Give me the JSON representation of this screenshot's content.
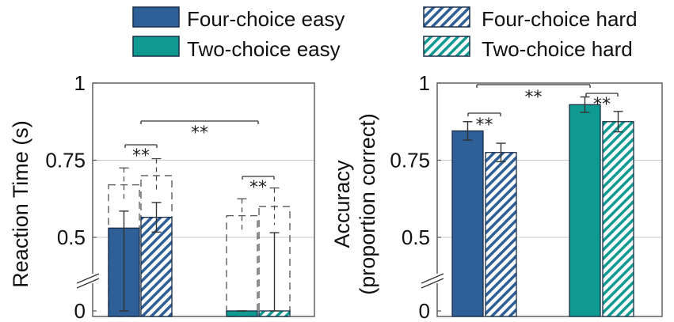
{
  "legend": {
    "items": [
      {
        "label": "Four-choice easy",
        "color": "#2e5f96",
        "pattern": "solid"
      },
      {
        "label": "Four-choice hard",
        "color": "#2e5f96",
        "pattern": "hatch"
      },
      {
        "label": "Two-choice easy",
        "color": "#0f9a91",
        "pattern": "solid"
      },
      {
        "label": "Two-choice hard",
        "color": "#0f9a91",
        "pattern": "hatch"
      }
    ]
  },
  "chart_data": [
    {
      "type": "bar",
      "ylabel": "Reaction Time (s)",
      "y_ticks": [
        "1",
        "0.75",
        "0.5",
        "0"
      ],
      "axis_break": true,
      "grid": true,
      "significance_label": "**",
      "groups": [
        {
          "name": "Four-choice",
          "bars": [
            {
              "condition": "Four-choice easy",
              "value": 0.53,
              "error": 0.055,
              "dashed_value": 0.67,
              "dashed_error": 0.055
            },
            {
              "condition": "Four-choice hard",
              "value": 0.565,
              "error": 0.048,
              "dashed_value": 0.7,
              "dashed_error": 0.055
            }
          ]
        },
        {
          "name": "Two-choice",
          "bars": [
            {
              "condition": "Two-choice easy",
              "value": 0.435,
              "error": 0.048,
              "dashed_value": 0.57,
              "dashed_error": 0.055
            },
            {
              "condition": "Two-choice hard",
              "value": 0.46,
              "error": 0.055,
              "dashed_value": 0.6,
              "dashed_error": 0.06
            }
          ]
        }
      ]
    },
    {
      "type": "bar",
      "ylabel": "Accuracy\n(proportion correct)",
      "y_ticks": [
        "1",
        "0.75",
        "0.5",
        "0"
      ],
      "axis_break": true,
      "grid": true,
      "significance_label": "**",
      "groups": [
        {
          "name": "Four-choice",
          "bars": [
            {
              "condition": "Four-choice easy",
              "value": 0.845,
              "error": 0.03
            },
            {
              "condition": "Four-choice hard",
              "value": 0.775,
              "error": 0.03
            }
          ]
        },
        {
          "name": "Two-choice",
          "bars": [
            {
              "condition": "Two-choice easy",
              "value": 0.93,
              "error": 0.025
            },
            {
              "condition": "Two-choice hard",
              "value": 0.875,
              "error": 0.033
            }
          ]
        }
      ]
    }
  ]
}
